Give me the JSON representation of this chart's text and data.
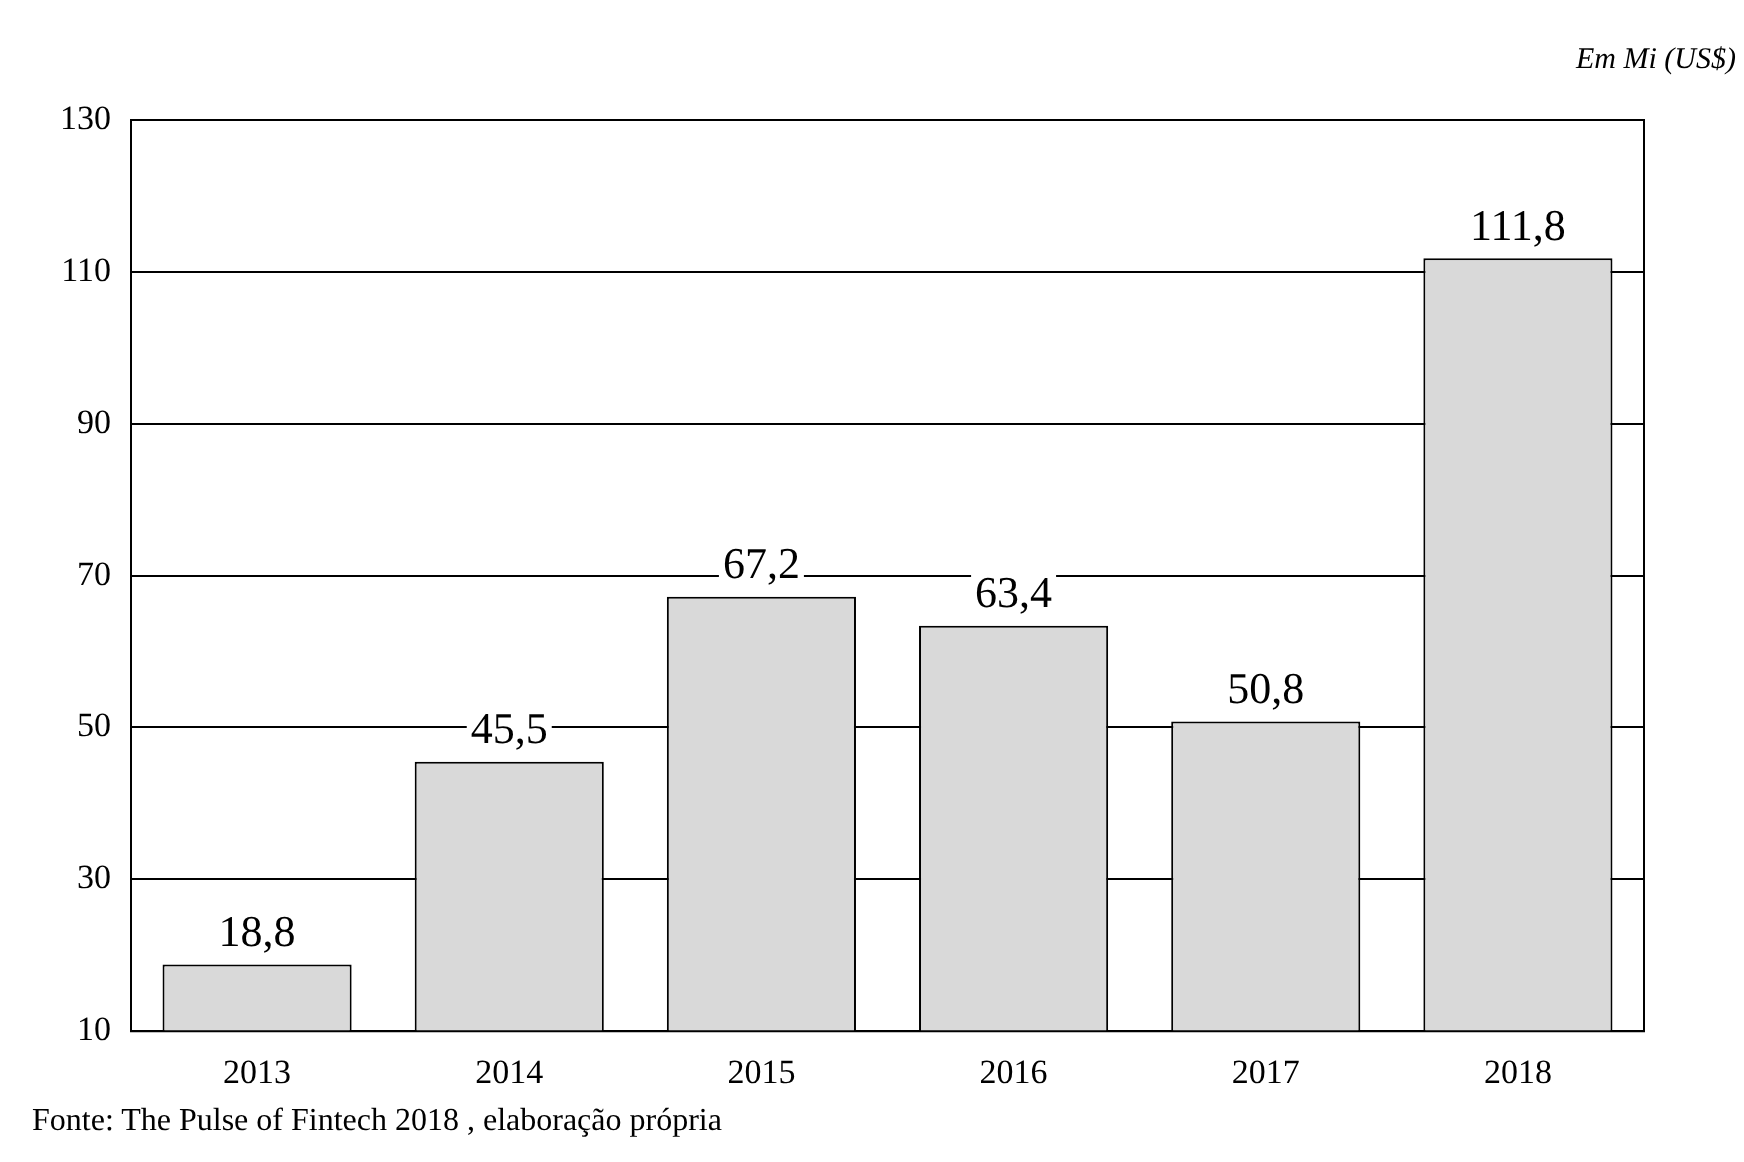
{
  "chart_data": {
    "type": "bar",
    "ylabel": "Em Mi (US$)",
    "categories": [
      "2013",
      "2014",
      "2015",
      "2016",
      "2017",
      "2018"
    ],
    "values": [
      18.8,
      45.5,
      67.2,
      63.4,
      50.8,
      111.8
    ],
    "value_labels": [
      "18,8",
      "45,5",
      "67,2",
      "63,4",
      "50,8",
      "111,8"
    ],
    "color": "#d9d9d9",
    "ylim": [
      10,
      130
    ],
    "yticks": [
      10,
      30,
      50,
      70,
      90,
      110,
      130
    ],
    "grid": "y",
    "legend": false,
    "annotations": [
      "Fonte: The Pulse of Fintech 2018 , elaboração própria"
    ]
  }
}
